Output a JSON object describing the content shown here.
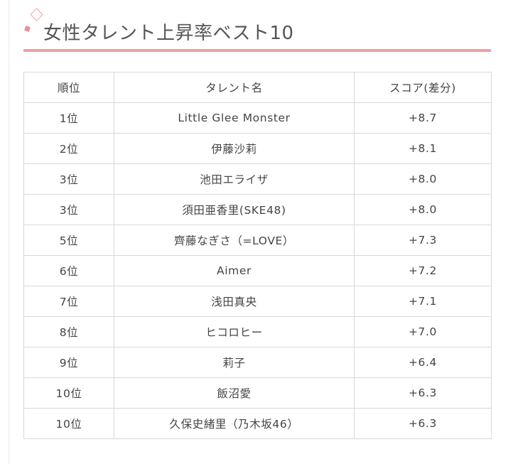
{
  "heading": {
    "title": "女性タレント上昇率ベスト10",
    "accent_color": "#f0a0a3"
  },
  "table": {
    "columns": [
      "順位",
      "タレント名",
      "スコア(差分)"
    ],
    "rows": [
      {
        "rank": "1位",
        "name": "Little Glee Monster",
        "score": "+8.7"
      },
      {
        "rank": "2位",
        "name": "伊藤沙莉",
        "score": "+8.1"
      },
      {
        "rank": "3位",
        "name": "池田エライザ",
        "score": "+8.0"
      },
      {
        "rank": "3位",
        "name": "須田亜香里(SKE48)",
        "score": "+8.0"
      },
      {
        "rank": "5位",
        "name": "齊藤なぎさ（=LOVE）",
        "score": "+7.3"
      },
      {
        "rank": "6位",
        "name": "Aimer",
        "score": "+7.2"
      },
      {
        "rank": "7位",
        "name": "浅田真央",
        "score": "+7.1"
      },
      {
        "rank": "8位",
        "name": "ヒコロヒー",
        "score": "+7.0"
      },
      {
        "rank": "9位",
        "name": "莉子",
        "score": "+6.4"
      },
      {
        "rank": "10位",
        "name": "飯沼愛",
        "score": "+6.3"
      },
      {
        "rank": "10位",
        "name": "久保史緒里（乃木坂46）",
        "score": "+6.3"
      }
    ]
  }
}
